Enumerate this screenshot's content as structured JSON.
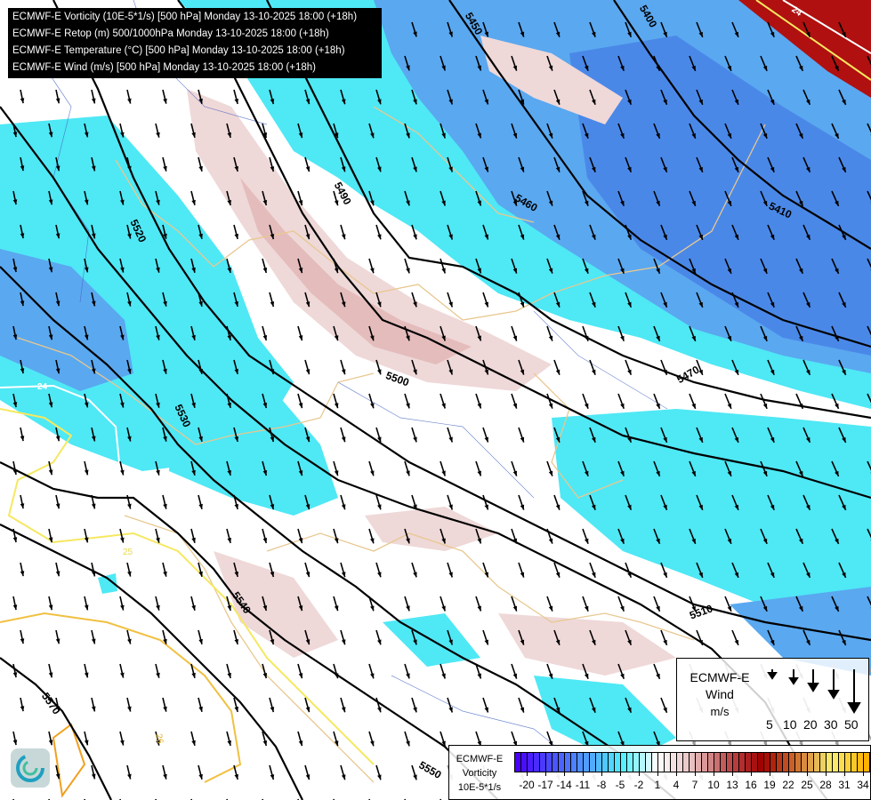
{
  "header": {
    "lines": [
      "ECMWF-E Vorticity (10E-5*1/s) [500 hPa] Monday 13-10-2025 18:00 (+18h)",
      "ECMWF-E Retop (m) 500/1000hPa Monday 13-10-2025 18:00 (+18h)",
      "ECMWF-E Temperature (°C) [500 hPa] Monday 13-10-2025 18:00 (+18h)",
      "ECMWF-E Wind (m/s) [500 hPa] Monday 13-10-2025 18:00 (+18h)"
    ]
  },
  "map": {
    "geopotential_labels": [
      "5450",
      "5400",
      "5490",
      "5460",
      "5410",
      "5520",
      "5500",
      "5470",
      "5530",
      "5540",
      "5510",
      "5570",
      "5550"
    ],
    "temperature_labels": [
      "24",
      "24",
      "25",
      "26"
    ],
    "wind_direction": "north-west to south-east",
    "colors": {
      "cyan": "#4fe8f5",
      "blue": "#5aa8f0",
      "deep_blue": "#4a88e8",
      "pink": "#efd8d8",
      "rose": "#e4bcbc",
      "red": "#b01010",
      "temp_white": "#ffffff",
      "temp_yellow": "#f5e860",
      "temp_orange": "#f0b030",
      "border": "#e8c890",
      "river": "#4060c0"
    }
  },
  "wind_legend": {
    "title_lines": [
      "ECMWF-E",
      "Wind",
      "m/s"
    ],
    "values": [
      "5",
      "10",
      "20",
      "30",
      "50"
    ]
  },
  "colorbar": {
    "title_lines": [
      "ECMWF-E",
      "Vorticity",
      "10E-5*1/s"
    ],
    "ticks": [
      "-20",
      "-17",
      "-14",
      "-11",
      "-8",
      "-5",
      "-2",
      "1",
      "4",
      "7",
      "10",
      "13",
      "16",
      "19",
      "22",
      "25",
      "28",
      "31",
      "34"
    ],
    "range": [
      -22,
      35
    ],
    "color_stops": [
      "#4a00ff",
      "#4a50ff",
      "#50a0ff",
      "#50f0ff",
      "#ffffff",
      "#e8c0c0",
      "#c05050",
      "#a00000",
      "#d07030",
      "#f8f070",
      "#ffb000"
    ]
  }
}
